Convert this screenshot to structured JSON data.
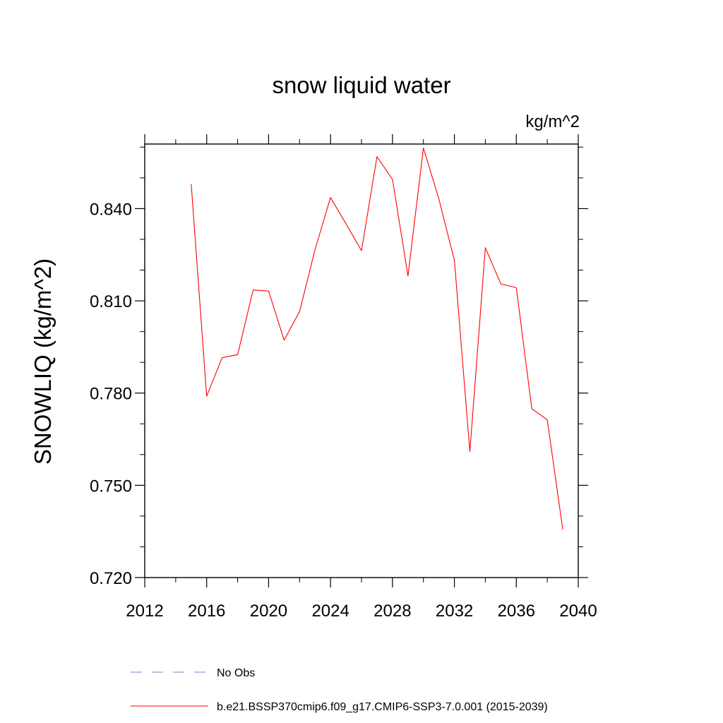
{
  "chart_data": {
    "type": "line",
    "title": "snow liquid water",
    "units": "kg/m^2",
    "xlabel": "",
    "ylabel": "SNOWLIQ  (kg/m^2)",
    "xlim": [
      2012,
      2040
    ],
    "ylim": [
      0.72,
      0.861
    ],
    "x_ticks": [
      2012,
      2016,
      2020,
      2024,
      2028,
      2032,
      2036,
      2040
    ],
    "x_tick_labels": [
      "2012",
      "2016",
      "2020",
      "2024",
      "2028",
      "2032",
      "2036",
      "2040"
    ],
    "x_minor_step": 2,
    "y_ticks": [
      0.72,
      0.75,
      0.78,
      0.81,
      0.84
    ],
    "y_tick_labels": [
      "0.720",
      "0.750",
      "0.780",
      "0.810",
      "0.840"
    ],
    "y_minor_step": 0.01,
    "grid": false,
    "series": [
      {
        "name": "b.e21.BSSP370cmip6.f09_g17.CMIP6-SSP3-7.0.001 (2015-2039)",
        "color": "#ff0000",
        "dash": "solid",
        "x": [
          2015,
          2016,
          2017,
          2018,
          2019,
          2020,
          2021,
          2022,
          2023,
          2024,
          2025,
          2026,
          2027,
          2028,
          2029,
          2030,
          2031,
          2032,
          2033,
          2034,
          2035,
          2036,
          2037,
          2038,
          2039
        ],
        "values": [
          0.848,
          0.779,
          0.7915,
          0.7925,
          0.8135,
          0.8132,
          0.7972,
          0.8065,
          0.8267,
          0.8436,
          0.835,
          0.8263,
          0.8569,
          0.8495,
          0.8181,
          0.8597,
          0.8431,
          0.8231,
          0.761,
          0.8273,
          0.8155,
          0.8143,
          0.7749,
          0.7713,
          0.7356
        ]
      }
    ],
    "legend": {
      "placement": "bottom",
      "entries": [
        {
          "label": "No Obs",
          "color": "#8080c0",
          "dash": "dashed"
        },
        {
          "label": "b.e21.BSSP370cmip6.f09_g17.CMIP6-SSP3-7.0.001 (2015-2039)",
          "color": "#ff0000",
          "dash": "solid"
        }
      ]
    }
  }
}
